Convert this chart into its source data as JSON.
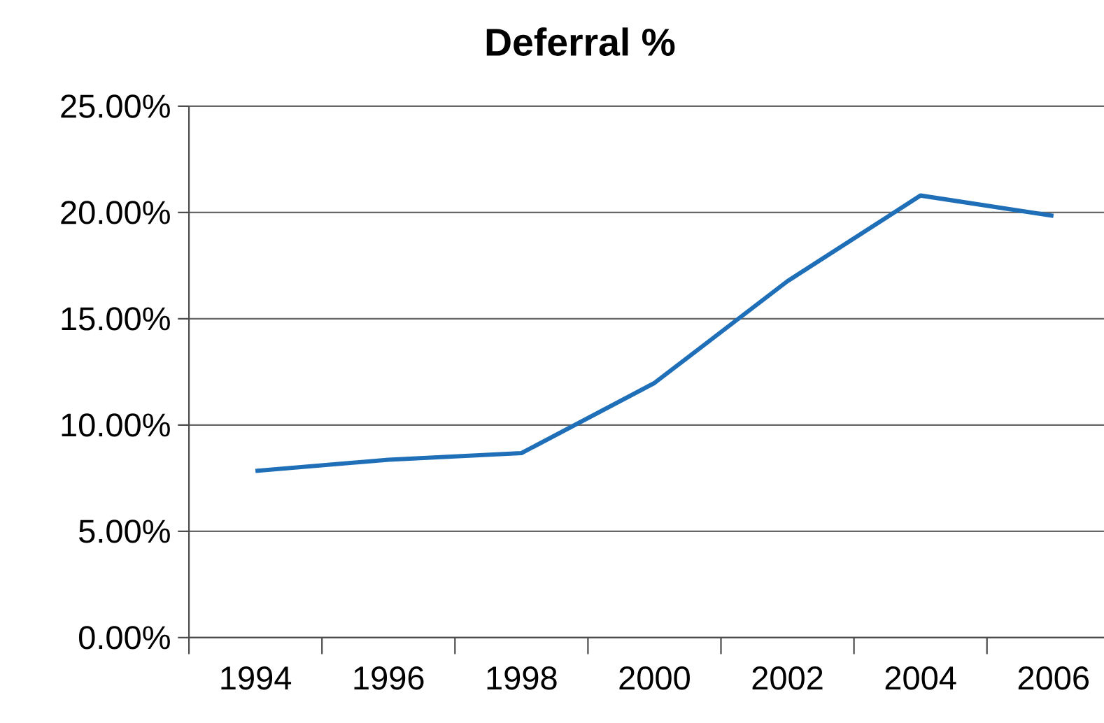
{
  "chart_data": {
    "type": "line",
    "title": "Deferral %",
    "categories": [
      "1994",
      "1996",
      "1998",
      "2000",
      "2002",
      "2004",
      "2006"
    ],
    "series": [
      {
        "color": "#1f6fb8",
        "values": [
          7.84,
          8.37,
          8.68,
          11.98,
          16.77,
          20.8,
          19.84
        ]
      }
    ],
    "ylim": [
      0,
      25
    ],
    "yticks": [
      {
        "value": 0,
        "label": "0.00%"
      },
      {
        "value": 5,
        "label": "5.00%"
      },
      {
        "value": 10,
        "label": "10.00%"
      },
      {
        "value": 15,
        "label": "15.00%"
      },
      {
        "value": 20,
        "label": "20.00%"
      },
      {
        "value": 25,
        "label": "25.00%"
      }
    ],
    "grid": "y",
    "legend": false,
    "marker": "none",
    "line_style": "solid"
  }
}
